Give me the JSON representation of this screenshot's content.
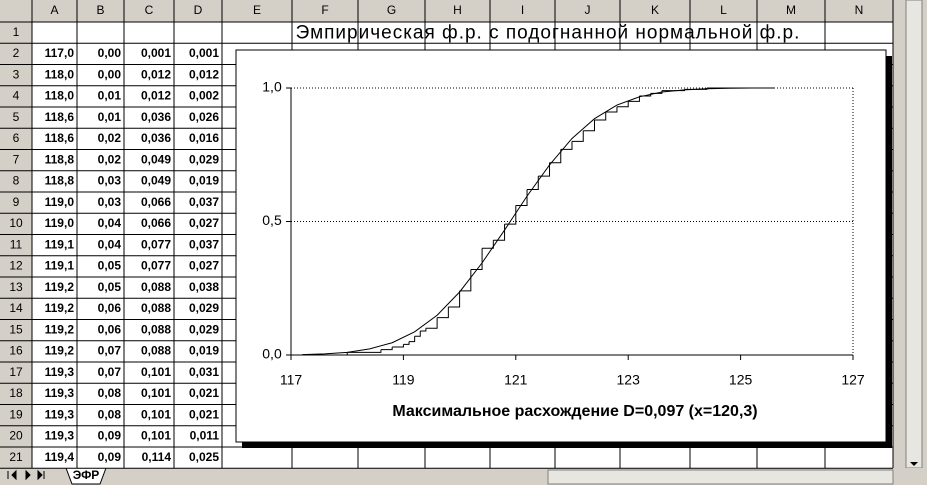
{
  "spreadsheet": {
    "columns": [
      "A",
      "B",
      "C",
      "D",
      "E",
      "F",
      "G",
      "H",
      "I",
      "J",
      "K",
      "L",
      "M",
      "N"
    ],
    "row_numbers": [
      "1",
      "2",
      "3",
      "4",
      "5",
      "6",
      "7",
      "8",
      "9",
      "10",
      "11",
      "12",
      "13",
      "14",
      "15",
      "16",
      "17",
      "18",
      "19",
      "20",
      "21"
    ],
    "cells": [
      [
        "117,0",
        "0,00",
        "0,001",
        "0,001"
      ],
      [
        "118,0",
        "0,00",
        "0,012",
        "0,012"
      ],
      [
        "118,0",
        "0,01",
        "0,012",
        "0,002"
      ],
      [
        "118,6",
        "0,01",
        "0,036",
        "0,026"
      ],
      [
        "118,6",
        "0,02",
        "0,036",
        "0,016"
      ],
      [
        "118,8",
        "0,02",
        "0,049",
        "0,029"
      ],
      [
        "118,8",
        "0,03",
        "0,049",
        "0,019"
      ],
      [
        "119,0",
        "0,03",
        "0,066",
        "0,037"
      ],
      [
        "119,0",
        "0,04",
        "0,066",
        "0,027"
      ],
      [
        "119,1",
        "0,04",
        "0,077",
        "0,037"
      ],
      [
        "119,1",
        "0,05",
        "0,077",
        "0,027"
      ],
      [
        "119,2",
        "0,05",
        "0,088",
        "0,038"
      ],
      [
        "119,2",
        "0,06",
        "0,088",
        "0,029"
      ],
      [
        "119,2",
        "0,06",
        "0,088",
        "0,029"
      ],
      [
        "119,2",
        "0,07",
        "0,088",
        "0,019"
      ],
      [
        "119,3",
        "0,07",
        "0,101",
        "0,031"
      ],
      [
        "119,3",
        "0,08",
        "0,101",
        "0,021"
      ],
      [
        "119,3",
        "0,08",
        "0,101",
        "0,021"
      ],
      [
        "119,3",
        "0,09",
        "0,101",
        "0,011"
      ],
      [
        "119,4",
        "0,09",
        "0,114",
        "0,025"
      ]
    ],
    "sheet_tab": "ЭФР"
  },
  "chart_data": {
    "type": "line",
    "title": "Эмпирическая ф.р. с подогнанной нормальной ф.р.",
    "x_label": "Максимальное расхождение D=0,097  (x=120,3)",
    "xlim": [
      117,
      127
    ],
    "xticks": [
      117,
      119,
      121,
      123,
      125,
      127
    ],
    "ylim": [
      0,
      1
    ],
    "yticks": [
      {
        "value": 0,
        "label": "0,0"
      },
      {
        "value": 0.5,
        "label": "0,5"
      },
      {
        "value": 1,
        "label": "1,0"
      }
    ],
    "grid": true,
    "series": [
      {
        "style": "step",
        "color": "#000000",
        "x": [
          117.0,
          118.0,
          118.6,
          118.8,
          119.0,
          119.1,
          119.2,
          119.3,
          119.4,
          119.6,
          119.8,
          120.0,
          120.2,
          120.4,
          120.6,
          120.8,
          121.0,
          121.2,
          121.4,
          121.6,
          121.8,
          122.0,
          122.2,
          122.4,
          122.6,
          122.8,
          123.0,
          123.2,
          123.4,
          123.6,
          124.0,
          124.4,
          125.6
        ],
        "values": [
          0,
          0.01,
          0.02,
          0.03,
          0.04,
          0.05,
          0.07,
          0.09,
          0.1,
          0.14,
          0.18,
          0.24,
          0.32,
          0.4,
          0.43,
          0.49,
          0.56,
          0.62,
          0.67,
          0.72,
          0.77,
          0.8,
          0.84,
          0.88,
          0.91,
          0.93,
          0.95,
          0.97,
          0.98,
          0.99,
          0.995,
          1.0,
          1.0
        ]
      },
      {
        "style": "smooth",
        "color": "#000000",
        "x": [
          117.2,
          117.6,
          118.0,
          118.4,
          118.8,
          119.2,
          119.6,
          120.0,
          120.4,
          120.8,
          121.2,
          121.6,
          122.0,
          122.4,
          122.8,
          123.2,
          123.6,
          124.0,
          124.4,
          124.8,
          125.2,
          125.6
        ],
        "values": [
          0.0015,
          0.004,
          0.01,
          0.023,
          0.046,
          0.087,
          0.149,
          0.236,
          0.345,
          0.468,
          0.595,
          0.712,
          0.811,
          0.885,
          0.936,
          0.967,
          0.985,
          0.993,
          0.997,
          0.999,
          1.0,
          1.0
        ]
      }
    ]
  }
}
